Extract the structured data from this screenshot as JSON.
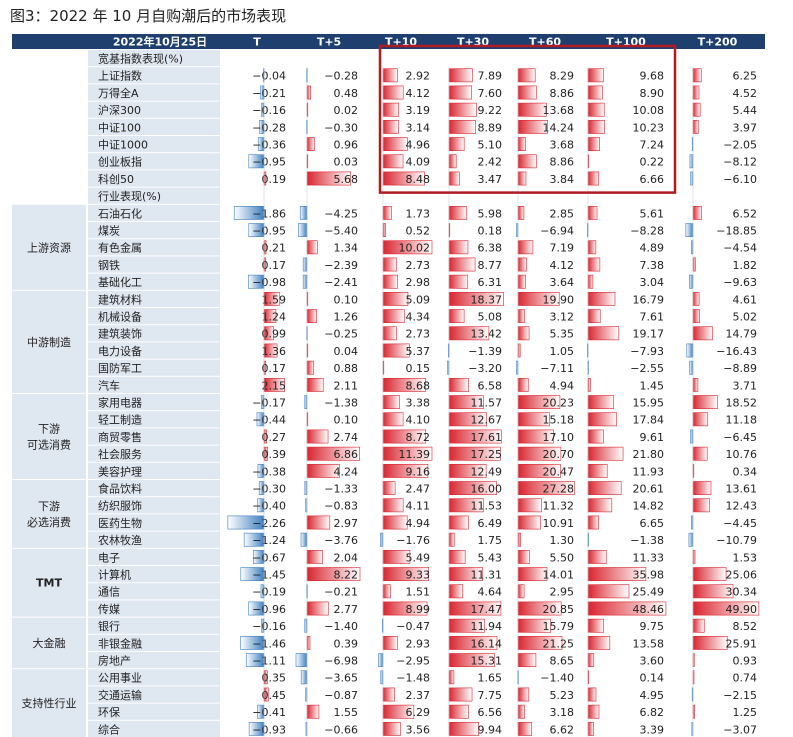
{
  "title": "图3：2022 年 10 月自购潮后的市场表现",
  "chart_data": {
    "type": "table",
    "header": {
      "date": "2022年10月25日",
      "columns": [
        "T",
        "T+5",
        "T+10",
        "T+30",
        "T+60",
        "T+100",
        "T+200"
      ]
    },
    "colors": {
      "header_bg": "#1f3f6e",
      "header_text": "#ffffff",
      "label_bg": "#dfe7f1",
      "positive": "#d9252f",
      "negative": "#3f7fc0",
      "highlight_border": "#b01c24"
    },
    "scale_max": [
      2.5,
      6.9,
      10,
      18.5,
      28,
      48.5,
      50
    ],
    "sections": [
      {
        "title": "宽基指数表现(%)",
        "groups": [
          {
            "label": "",
            "rows": [
              {
                "name": "上证指数",
                "values": [
                  -0.04,
                  -0.28,
                  2.92,
                  7.89,
                  8.29,
                  9.68,
                  6.25
                ]
              },
              {
                "name": "万得全A",
                "values": [
                  -0.21,
                  0.48,
                  4.12,
                  7.6,
                  8.86,
                  8.9,
                  4.52
                ]
              },
              {
                "name": "沪深300",
                "values": [
                  -0.16,
                  0.02,
                  3.19,
                  9.22,
                  13.68,
                  10.08,
                  5.44
                ]
              },
              {
                "name": "中证100",
                "values": [
                  -0.28,
                  -0.3,
                  3.14,
                  8.89,
                  14.24,
                  10.23,
                  3.97
                ]
              },
              {
                "name": "中证1000",
                "values": [
                  -0.36,
                  0.96,
                  4.96,
                  5.1,
                  3.68,
                  7.24,
                  -2.05
                ]
              },
              {
                "name": "创业板指",
                "values": [
                  -0.95,
                  0.03,
                  4.09,
                  2.42,
                  8.86,
                  0.22,
                  -8.12
                ]
              },
              {
                "name": "科创50",
                "values": [
                  0.19,
                  5.68,
                  8.48,
                  3.47,
                  3.84,
                  6.66,
                  -6.1
                ]
              }
            ]
          }
        ]
      },
      {
        "title": "行业表现(%)",
        "groups": [
          {
            "label": "上游资源",
            "rows": [
              {
                "name": "石油石化",
                "values": [
                  -1.86,
                  -4.25,
                  1.73,
                  5.98,
                  2.85,
                  5.61,
                  6.52
                ]
              },
              {
                "name": "煤炭",
                "values": [
                  -0.95,
                  -5.4,
                  0.52,
                  0.18,
                  -6.94,
                  -8.28,
                  -18.85
                ]
              },
              {
                "name": "有色金属",
                "values": [
                  0.21,
                  1.34,
                  10.02,
                  6.38,
                  7.19,
                  4.89,
                  -4.54
                ]
              },
              {
                "name": "钢铁",
                "values": [
                  0.17,
                  -2.39,
                  2.73,
                  8.77,
                  4.12,
                  7.38,
                  1.82
                ]
              },
              {
                "name": "基础化工",
                "values": [
                  -0.98,
                  -2.41,
                  2.98,
                  6.31,
                  3.64,
                  3.04,
                  -9.63
                ]
              }
            ]
          },
          {
            "label": "中游制造",
            "rows": [
              {
                "name": "建筑材料",
                "values": [
                  1.59,
                  0.1,
                  5.09,
                  18.37,
                  19.9,
                  16.79,
                  4.61
                ]
              },
              {
                "name": "机械设备",
                "values": [
                  1.24,
                  1.26,
                  4.34,
                  5.08,
                  3.12,
                  7.61,
                  5.02
                ]
              },
              {
                "name": "建筑装饰",
                "values": [
                  0.99,
                  -0.25,
                  2.73,
                  13.42,
                  5.35,
                  19.17,
                  14.79
                ]
              },
              {
                "name": "电力设备",
                "values": [
                  1.36,
                  0.04,
                  5.37,
                  -1.39,
                  1.05,
                  -7.93,
                  -16.43
                ]
              },
              {
                "name": "国防军工",
                "values": [
                  0.17,
                  0.88,
                  0.15,
                  -3.2,
                  -7.11,
                  -2.55,
                  -8.89
                ]
              },
              {
                "name": "汽车",
                "values": [
                  2.15,
                  2.11,
                  8.68,
                  6.58,
                  4.94,
                  1.45,
                  3.71
                ]
              }
            ]
          },
          {
            "label": "下游\n可选消费",
            "rows": [
              {
                "name": "家用电器",
                "values": [
                  -0.17,
                  -1.38,
                  3.38,
                  11.57,
                  20.23,
                  15.95,
                  18.52
                ]
              },
              {
                "name": "轻工制造",
                "values": [
                  -0.44,
                  0.1,
                  4.1,
                  12.67,
                  15.18,
                  17.84,
                  11.18
                ]
              },
              {
                "name": "商贸零售",
                "values": [
                  0.27,
                  2.74,
                  8.72,
                  17.61,
                  17.1,
                  9.61,
                  -6.45
                ]
              },
              {
                "name": "社会服务",
                "values": [
                  0.39,
                  6.86,
                  11.39,
                  17.25,
                  20.7,
                  21.8,
                  10.76
                ]
              },
              {
                "name": "美容护理",
                "values": [
                  -0.38,
                  4.24,
                  9.16,
                  12.49,
                  20.47,
                  11.93,
                  0.34
                ]
              }
            ]
          },
          {
            "label": "下游\n必选消费",
            "rows": [
              {
                "name": "食品饮料",
                "values": [
                  -0.3,
                  -1.33,
                  2.47,
                  16.0,
                  27.28,
                  20.61,
                  13.61
                ]
              },
              {
                "name": "纺织服饰",
                "values": [
                  -0.4,
                  -0.83,
                  4.11,
                  11.53,
                  11.32,
                  14.82,
                  12.43
                ]
              },
              {
                "name": "医药生物",
                "values": [
                  -2.26,
                  2.97,
                  4.94,
                  6.49,
                  10.91,
                  6.65,
                  -4.45
                ]
              },
              {
                "name": "农林牧渔",
                "values": [
                  -1.24,
                  -3.76,
                  -1.76,
                  1.75,
                  1.3,
                  -1.38,
                  -10.79
                ]
              }
            ]
          },
          {
            "label": "TMT",
            "rows": [
              {
                "name": "电子",
                "values": [
                  -0.67,
                  2.04,
                  5.49,
                  5.43,
                  5.5,
                  11.33,
                  1.53
                ]
              },
              {
                "name": "计算机",
                "values": [
                  -1.45,
                  8.22,
                  9.33,
                  11.31,
                  14.01,
                  35.98,
                  25.06
                ]
              },
              {
                "name": "通信",
                "values": [
                  -0.19,
                  -0.21,
                  1.51,
                  4.64,
                  2.95,
                  25.49,
                  30.34
                ]
              },
              {
                "name": "传媒",
                "values": [
                  -0.96,
                  2.77,
                  8.99,
                  17.47,
                  20.85,
                  48.46,
                  49.9
                ]
              }
            ]
          },
          {
            "label": "大金融",
            "rows": [
              {
                "name": "银行",
                "values": [
                  -0.16,
                  -1.4,
                  -0.47,
                  11.94,
                  15.79,
                  9.75,
                  8.52
                ]
              },
              {
                "name": "非银金融",
                "values": [
                  -1.46,
                  0.39,
                  2.93,
                  16.14,
                  21.25,
                  13.58,
                  25.91
                ]
              },
              {
                "name": "房地产",
                "values": [
                  -1.11,
                  -6.98,
                  -2.95,
                  15.31,
                  8.65,
                  3.6,
                  0.93
                ]
              }
            ]
          },
          {
            "label": "支持性行业",
            "rows": [
              {
                "name": "公用事业",
                "values": [
                  0.35,
                  -3.65,
                  -1.48,
                  1.65,
                  -1.4,
                  0.14,
                  0.74
                ]
              },
              {
                "name": "交通运输",
                "values": [
                  0.45,
                  -0.87,
                  2.37,
                  7.75,
                  5.23,
                  4.95,
                  -2.15
                ]
              },
              {
                "name": "环保",
                "values": [
                  -0.41,
                  1.55,
                  6.29,
                  6.56,
                  3.18,
                  6.82,
                  1.25
                ]
              },
              {
                "name": "综合",
                "values": [
                  -0.93,
                  -0.66,
                  3.56,
                  9.94,
                  6.62,
                  3.39,
                  -3.07
                ]
              }
            ]
          }
        ]
      }
    ]
  }
}
